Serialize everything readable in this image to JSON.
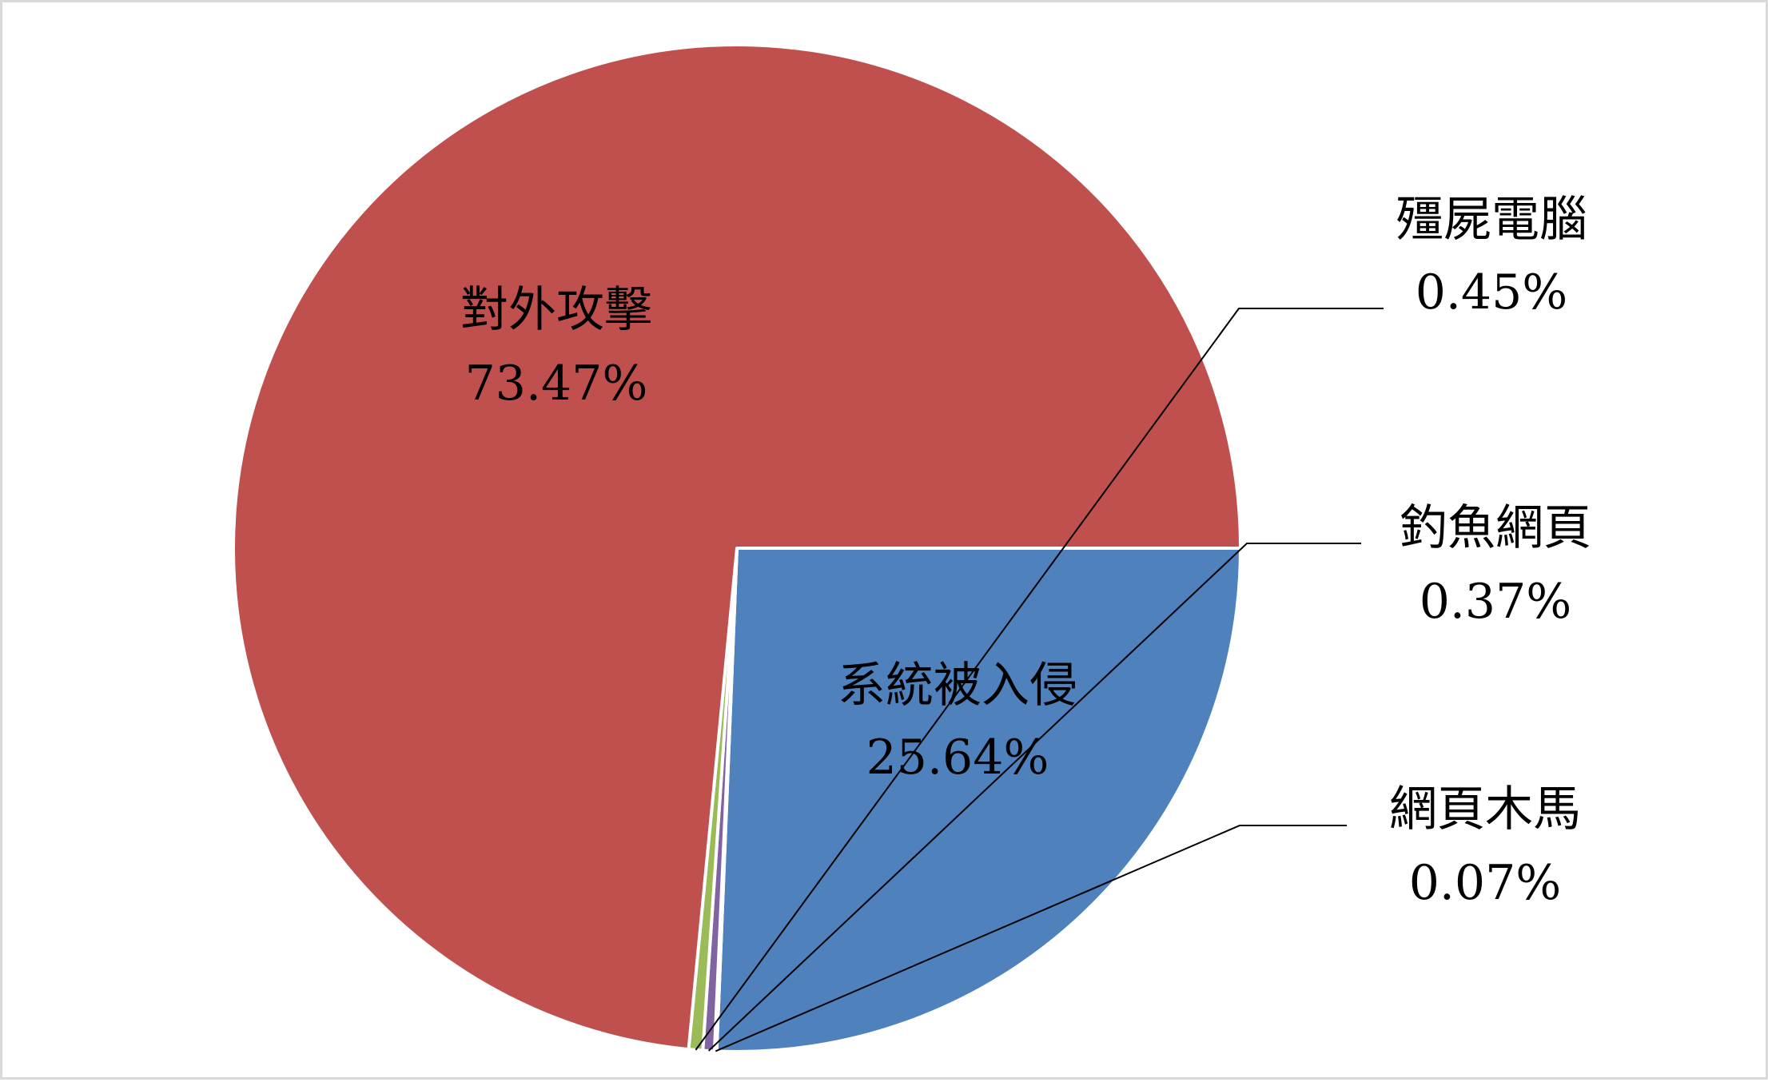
{
  "chart_data": {
    "type": "pie",
    "title": "",
    "slices": [
      {
        "name": "系統被入侵",
        "value": 25.64,
        "label": "25.64%",
        "color": "#4f81bd"
      },
      {
        "name": "網頁木馬",
        "value": 0.07,
        "label": "0.07%",
        "color": "#4bacc6"
      },
      {
        "name": "釣魚網頁",
        "value": 0.37,
        "label": "0.37%",
        "color": "#8064a2"
      },
      {
        "name": "殭屍電腦",
        "value": 0.45,
        "label": "0.45%",
        "color": "#9bbb59"
      },
      {
        "name": "對外攻擊",
        "value": 73.47,
        "label": "73.47%",
        "color": "#c0504d"
      }
    ],
    "start_angle_deg": 90,
    "direction": "clockwise",
    "legend": "none"
  }
}
